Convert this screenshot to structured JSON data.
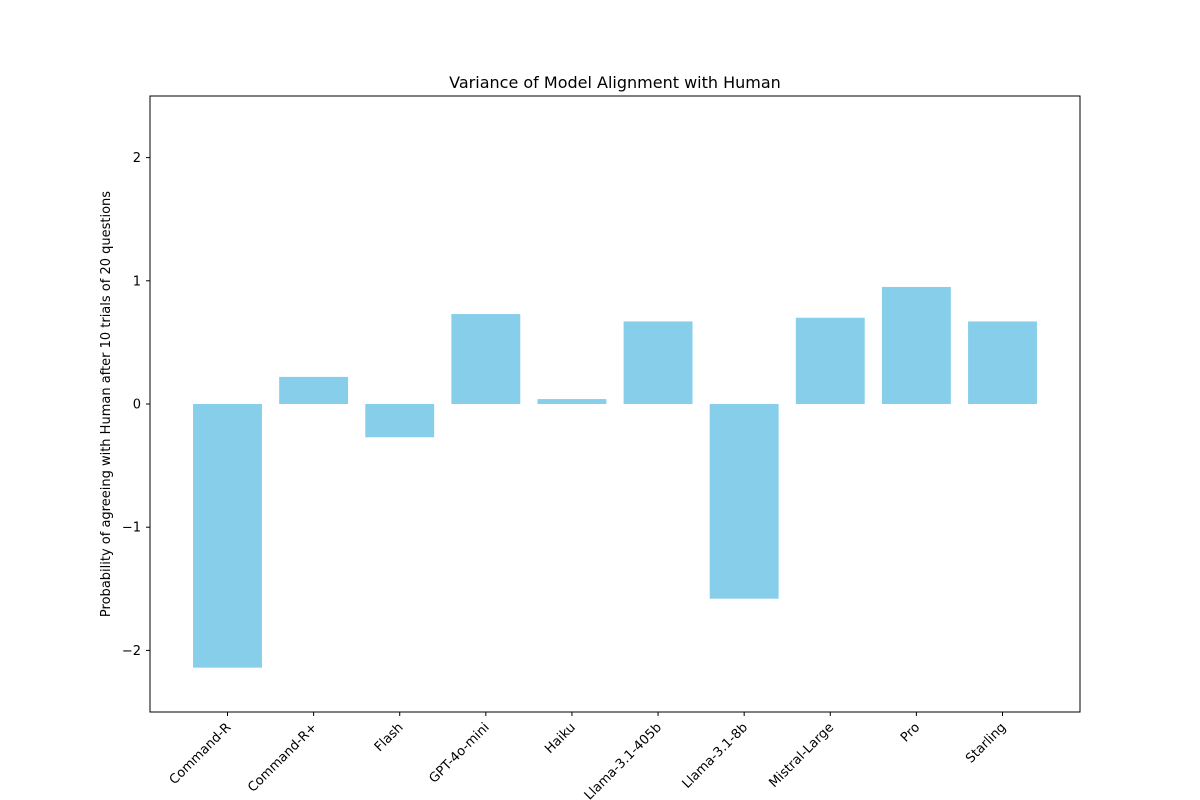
{
  "chart_data": {
    "type": "bar",
    "title": "Variance of Model Alignment with Human",
    "xlabel": "",
    "ylabel": "Probability of agreeing with Human after 10 trials of 20 questions",
    "categories": [
      "Command-R",
      "Command-R+",
      "Flash",
      "GPT-4o-mini",
      "Haiku",
      "Llama-3.1-405b",
      "Llama-3.1-8b",
      "Mistral-Large",
      "Pro",
      "Starling"
    ],
    "values": [
      -2.14,
      0.22,
      -0.27,
      0.73,
      0.04,
      0.67,
      -1.58,
      0.7,
      0.95,
      0.67
    ],
    "ylim": [
      -2.5,
      2.5
    ],
    "yticks": [
      -2,
      -1,
      0,
      1,
      2
    ],
    "ytick_labels": [
      "−2",
      "−1",
      "0",
      "1",
      "2"
    ],
    "bar_color": "#87CEEB",
    "grid": false,
    "legend": "none"
  }
}
